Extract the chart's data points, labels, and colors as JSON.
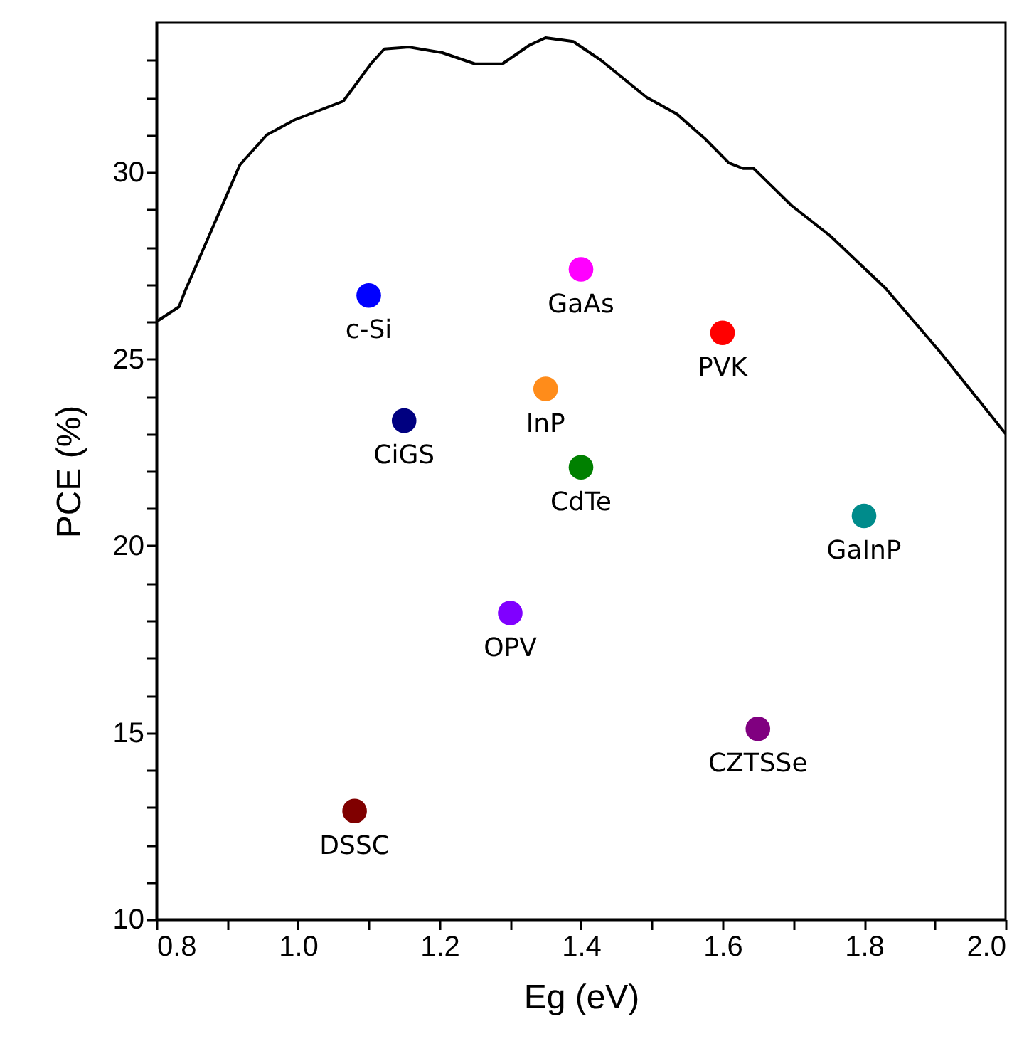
{
  "chart_data": {
    "type": "scatter",
    "xlabel": "Eg (eV)",
    "ylabel": "PCE (%)",
    "xlim": [
      0.8,
      2.0
    ],
    "ylim": [
      10,
      34
    ],
    "xticks": [
      0.8,
      {
        "value": 0.9,
        "label": null
      },
      {
        "value": 1.0,
        "label": "1.0"
      },
      {
        "value": 1.1,
        "label": null
      },
      1.2,
      {
        "value": 1.3,
        "label": null
      },
      1.4,
      {
        "value": 1.5,
        "label": null
      },
      1.6,
      {
        "value": 1.7,
        "label": null
      },
      1.8,
      {
        "value": 1.9,
        "label": null
      },
      {
        "value": 2.0,
        "label": "2.0"
      }
    ],
    "yticks": [
      10,
      {
        "value": 11,
        "label": null
      },
      {
        "value": 12,
        "label": null
      },
      {
        "value": 13,
        "label": null
      },
      {
        "value": 14,
        "label": null
      },
      15,
      {
        "value": 16,
        "label": null
      },
      {
        "value": 17,
        "label": null
      },
      {
        "value": 18,
        "label": null
      },
      {
        "value": 19,
        "label": null
      },
      20,
      {
        "value": 21,
        "label": null
      },
      {
        "value": 22,
        "label": null
      },
      {
        "value": 23,
        "label": null
      },
      {
        "value": 24,
        "label": null
      },
      25,
      {
        "value": 26,
        "label": null
      },
      {
        "value": 27,
        "label": null
      },
      {
        "value": 28,
        "label": null
      },
      {
        "value": 29,
        "label": null
      },
      30,
      {
        "value": 31,
        "label": null
      },
      {
        "value": 32,
        "label": null
      },
      {
        "value": 33,
        "label": null
      }
    ],
    "grid": false,
    "marker": "circle",
    "series": [
      {
        "type": "line",
        "color": "#000000",
        "line_style": "solid",
        "marker": "none",
        "x": [
          0.8,
          0.832,
          0.84,
          0.879,
          0.918,
          0.956,
          0.995,
          1.064,
          1.103,
          1.122,
          1.157,
          1.204,
          1.25,
          1.289,
          1.327,
          1.35,
          1.389,
          1.428,
          1.493,
          1.536,
          1.575,
          1.609,
          1.629,
          1.644,
          1.698,
          1.752,
          1.83,
          1.907,
          2.0
        ],
        "values": [
          26.0,
          26.4,
          26.8,
          28.5,
          30.2,
          31.0,
          31.4,
          31.9,
          32.9,
          33.3,
          33.35,
          33.2,
          32.9,
          32.9,
          33.4,
          33.6,
          33.5,
          33.0,
          32.0,
          31.55,
          30.9,
          30.25,
          30.1,
          30.1,
          29.1,
          28.3,
          26.9,
          25.2,
          23.0
        ]
      },
      {
        "name": "c-Si",
        "color": "#0000ff",
        "x": [
          1.1
        ],
        "values": [
          26.7
        ]
      },
      {
        "name": "GaAs",
        "color": "#ff00ff",
        "x": [
          1.4
        ],
        "values": [
          27.4
        ]
      },
      {
        "name": "PVK",
        "color": "#ff0000",
        "x": [
          1.6
        ],
        "values": [
          25.7
        ]
      },
      {
        "name": "InP",
        "color": "#ff8c1a",
        "x": [
          1.35
        ],
        "values": [
          24.2
        ]
      },
      {
        "name": "CiGS",
        "color": "#000080",
        "x": [
          1.15
        ],
        "values": [
          23.35
        ]
      },
      {
        "name": "CdTe",
        "color": "#008000",
        "x": [
          1.4
        ],
        "values": [
          22.1
        ]
      },
      {
        "name": "GaInP",
        "color": "#008b8b",
        "x": [
          1.8
        ],
        "values": [
          20.8
        ]
      },
      {
        "name": "OPV",
        "color": "#8000ff",
        "x": [
          1.3
        ],
        "values": [
          18.2
        ]
      },
      {
        "name": "CZTSSe",
        "color": "#800080",
        "x": [
          1.65
        ],
        "values": [
          15.1
        ]
      },
      {
        "name": "DSSC",
        "color": "#800000",
        "x": [
          1.08
        ],
        "values": [
          12.9
        ]
      }
    ]
  }
}
